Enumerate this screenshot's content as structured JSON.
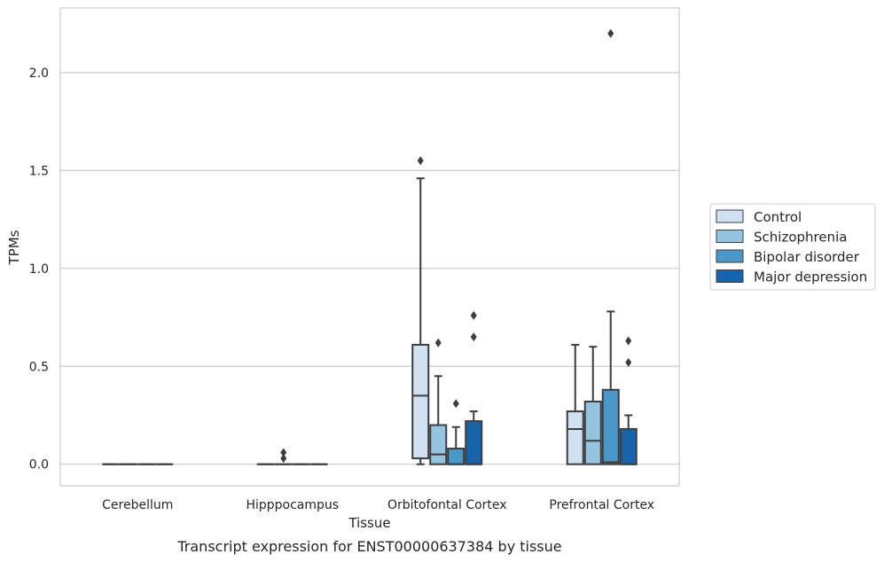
{
  "chart_data": {
    "type": "box",
    "xlabel": "Tissue",
    "ylabel": "TPMs",
    "caption": "Transcript expression for ENST00000637384 by tissue",
    "ylim": [
      -0.11,
      2.33
    ],
    "yticks": [
      0.0,
      0.5,
      1.0,
      1.5,
      2.0
    ],
    "ytick_labels": [
      "0.0",
      "0.5",
      "1.0",
      "1.5",
      "2.0"
    ],
    "grid": "horizontal",
    "legend_position": "right",
    "categories": [
      "Cerebellum",
      "Hipppocampus",
      "Orbitofontal Cortex",
      "Prefrontal Cortex"
    ],
    "series": [
      {
        "name": "Control",
        "color": "#d0e1f2"
      },
      {
        "name": "Schizophrenia",
        "color": "#94c4df"
      },
      {
        "name": "Bipolar disorder",
        "color": "#4a98c9"
      },
      {
        "name": "Major depression",
        "color": "#1764ab"
      }
    ],
    "groups": [
      {
        "category": "Cerebellum",
        "boxes": [
          {
            "series": "Control",
            "whisker_low": 0,
            "q1": 0,
            "median": 0,
            "q3": 0,
            "whisker_high": 0,
            "outliers": []
          },
          {
            "series": "Schizophrenia",
            "whisker_low": 0,
            "q1": 0,
            "median": 0,
            "q3": 0,
            "whisker_high": 0,
            "outliers": []
          },
          {
            "series": "Bipolar disorder",
            "whisker_low": 0,
            "q1": 0,
            "median": 0,
            "q3": 0,
            "whisker_high": 0,
            "outliers": []
          },
          {
            "series": "Major depression",
            "whisker_low": 0,
            "q1": 0,
            "median": 0,
            "q3": 0,
            "whisker_high": 0,
            "outliers": []
          }
        ]
      },
      {
        "category": "Hipppocampus",
        "boxes": [
          {
            "series": "Control",
            "whisker_low": 0,
            "q1": 0,
            "median": 0,
            "q3": 0,
            "whisker_high": 0,
            "outliers": []
          },
          {
            "series": "Schizophrenia",
            "whisker_low": 0,
            "q1": 0,
            "median": 0,
            "q3": 0,
            "whisker_high": 0,
            "outliers": [
              0.03,
              0.06
            ]
          },
          {
            "series": "Bipolar disorder",
            "whisker_low": 0,
            "q1": 0,
            "median": 0,
            "q3": 0,
            "whisker_high": 0,
            "outliers": []
          },
          {
            "series": "Major depression",
            "whisker_low": 0,
            "q1": 0,
            "median": 0,
            "q3": 0,
            "whisker_high": 0,
            "outliers": []
          }
        ]
      },
      {
        "category": "Orbitofontal Cortex",
        "boxes": [
          {
            "series": "Control",
            "whisker_low": 0,
            "q1": 0.03,
            "median": 0.35,
            "q3": 0.61,
            "whisker_high": 1.46,
            "outliers": [
              1.55
            ]
          },
          {
            "series": "Schizophrenia",
            "whisker_low": 0,
            "q1": 0,
            "median": 0.05,
            "q3": 0.2,
            "whisker_high": 0.45,
            "outliers": [
              0.62
            ]
          },
          {
            "series": "Bipolar disorder",
            "whisker_low": 0,
            "q1": 0,
            "median": 0,
            "q3": 0.08,
            "whisker_high": 0.19,
            "outliers": [
              0.31
            ]
          },
          {
            "series": "Major depression",
            "whisker_low": 0,
            "q1": 0,
            "median": 0,
            "q3": 0.22,
            "whisker_high": 0.27,
            "outliers": [
              0.65,
              0.76
            ]
          }
        ]
      },
      {
        "category": "Prefrontal Cortex",
        "boxes": [
          {
            "series": "Control",
            "whisker_low": 0,
            "q1": 0,
            "median": 0.18,
            "q3": 0.27,
            "whisker_high": 0.61,
            "outliers": []
          },
          {
            "series": "Schizophrenia",
            "whisker_low": 0,
            "q1": 0,
            "median": 0.12,
            "q3": 0.32,
            "whisker_high": 0.6,
            "outliers": []
          },
          {
            "series": "Bipolar disorder",
            "whisker_low": 0,
            "q1": 0,
            "median": 0.01,
            "q3": 0.38,
            "whisker_high": 0.78,
            "outliers": [
              2.2
            ]
          },
          {
            "series": "Major depression",
            "whisker_low": 0,
            "q1": 0,
            "median": 0,
            "q3": 0.18,
            "whisker_high": 0.25,
            "outliers": [
              0.52,
              0.63
            ]
          }
        ]
      }
    ]
  }
}
